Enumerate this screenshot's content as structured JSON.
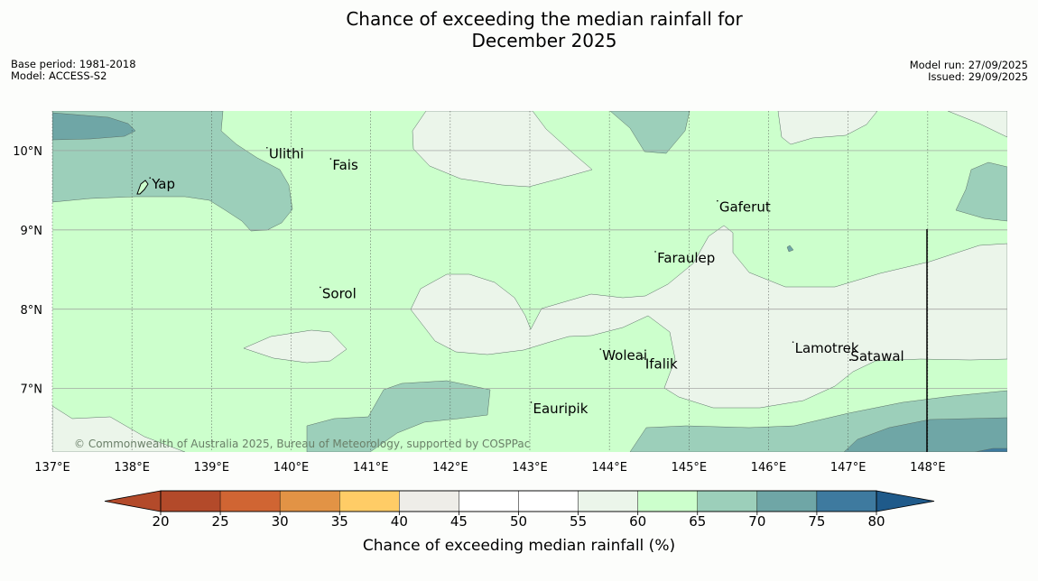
{
  "title": {
    "line1": "Chance of exceeding the median rainfall for",
    "line2": "December 2025"
  },
  "meta_left": {
    "base_period": "Base period: 1981-2018",
    "model": "Model: ACCESS-S2"
  },
  "meta_right": {
    "model_run": "Model run: 27/09/2025",
    "issued": "Issued: 29/09/2025"
  },
  "map": {
    "lon_range": [
      137,
      149
    ],
    "lat_range": [
      6.2,
      10.5
    ],
    "lon_ticks": [
      "137°E",
      "138°E",
      "139°E",
      "140°E",
      "141°E",
      "142°E",
      "143°E",
      "144°E",
      "145°E",
      "146°E",
      "147°E",
      "148°E"
    ],
    "lat_ticks": [
      "10°N",
      "9°N",
      "8°N",
      "7°N"
    ],
    "places": [
      {
        "name": "Yap",
        "lon": 138.25,
        "lat": 9.52
      },
      {
        "name": "Ulithi",
        "lon": 139.72,
        "lat": 9.9
      },
      {
        "name": "Fais",
        "lon": 140.52,
        "lat": 9.76
      },
      {
        "name": "Gaferut",
        "lon": 145.38,
        "lat": 9.23
      },
      {
        "name": "Faraulep",
        "lon": 144.6,
        "lat": 8.59
      },
      {
        "name": "Sorol",
        "lon": 140.39,
        "lat": 8.14
      },
      {
        "name": "Woleai",
        "lon": 143.91,
        "lat": 7.36
      },
      {
        "name": "Ifalik",
        "lon": 144.45,
        "lat": 7.25
      },
      {
        "name": "Lamotrek",
        "lon": 146.33,
        "lat": 7.45
      },
      {
        "name": "Satawal",
        "lon": 147.03,
        "lat": 7.35
      },
      {
        "name": "Eauripik",
        "lon": 143.04,
        "lat": 6.69
      }
    ],
    "credit": "© Commonwealth of Australia 2025, Bureau of Meteorology, supported by COSPPac",
    "colors": {
      "c55_60": "#ebf5ea",
      "c60_65": "#ccffcc",
      "c65_70": "#9ccfba",
      "c70_75": "#6fa6a6",
      "c75_80": "#3e7a9f",
      "c80": "#1f5a8a"
    }
  },
  "colorbar": {
    "ticks": [
      "20",
      "25",
      "30",
      "35",
      "40",
      "45",
      "50",
      "55",
      "60",
      "65",
      "70",
      "75",
      "80"
    ],
    "colors": [
      "#b34a2a",
      "#b34a2a",
      "#d06533",
      "#e29345",
      "#ffcc66",
      "#eeede8",
      "#ffffff",
      "#ffffff",
      "#ebf5ea",
      "#ccffcc",
      "#9ccfba",
      "#6fa6a6",
      "#3e7a9f",
      "#1f5a8a"
    ],
    "label": "Chance of exceeding median rainfall (%)"
  }
}
